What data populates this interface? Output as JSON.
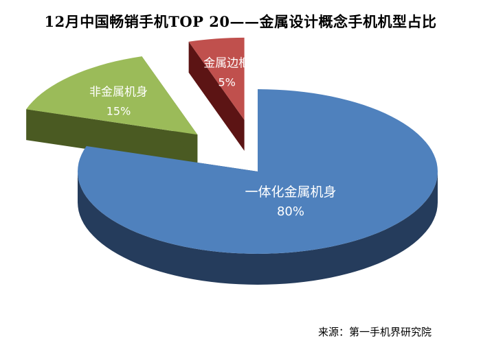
{
  "chart_data": {
    "type": "pie",
    "title": "12月中国畅销手机TOP 20——金属设计概念手机机型占比",
    "slices": [
      {
        "name": "一体化金属机身",
        "value": 80,
        "label": "80%",
        "color": "#4F81BD",
        "side_color": "#253C5C",
        "explode": false
      },
      {
        "name": "非金属机身",
        "value": 15,
        "label": "15%",
        "color": "#9BBB59",
        "side_color": "#4A5A22",
        "explode": true
      },
      {
        "name": "金属边框",
        "value": 5,
        "label": "5%",
        "color": "#C0504D",
        "side_color": "#5C1414",
        "explode": true
      }
    ],
    "style": "3d-exploded"
  },
  "source_note": "来源：第一手机界研究院"
}
